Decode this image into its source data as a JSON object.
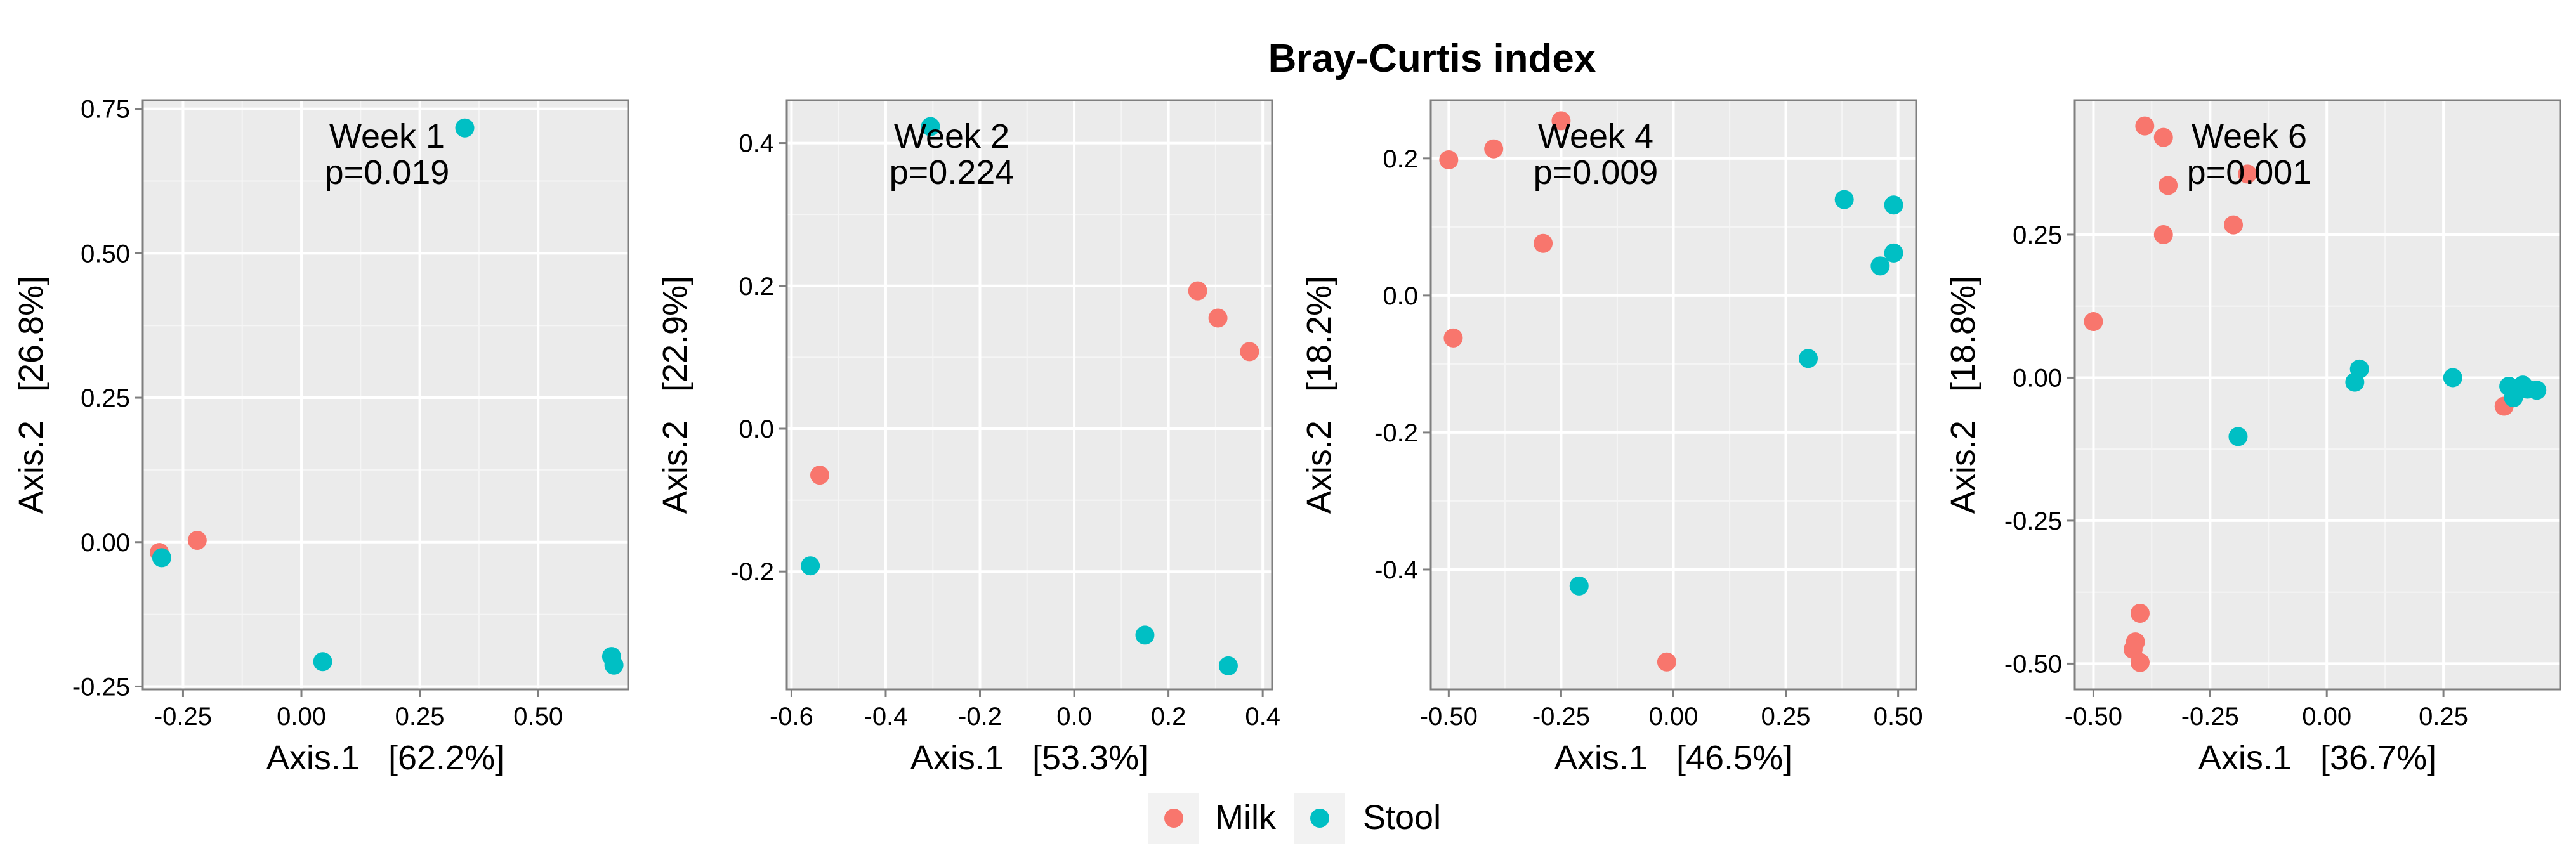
{
  "title": "Bray-Curtis index",
  "legend": {
    "placement": "bottom",
    "items": [
      {
        "label": "Milk",
        "color": "#F8766D"
      },
      {
        "label": "Stool",
        "color": "#00BFC4"
      }
    ]
  },
  "chart_data": [
    {
      "type": "scatter",
      "annotation": [
        "Week 1",
        "p=0.019"
      ],
      "xlabel": "Axis.1   [62.2%]",
      "ylabel": "Axis.2   [26.8%]",
      "xlim": [
        -0.335,
        0.69
      ],
      "ylim": [
        -0.255,
        0.765
      ],
      "xticks": [
        -0.25,
        0.0,
        0.25,
        0.5
      ],
      "xtick_labels": [
        "-0.25",
        "0.00",
        "0.25",
        "0.50"
      ],
      "yticks": [
        -0.25,
        0.0,
        0.25,
        0.5,
        0.75
      ],
      "ytick_labels": [
        "-0.25",
        "0.00",
        "0.25",
        "0.50",
        "0.75"
      ],
      "grid": true,
      "series": [
        {
          "name": "Milk",
          "color": "#F8766D",
          "points": [
            [
              -0.22,
              0.003
            ],
            [
              -0.3,
              -0.018
            ]
          ]
        },
        {
          "name": "Stool",
          "color": "#00BFC4",
          "points": [
            [
              0.345,
              0.717
            ],
            [
              0.045,
              -0.207
            ],
            [
              0.655,
              -0.198
            ],
            [
              0.66,
              -0.213
            ],
            [
              -0.295,
              -0.027
            ]
          ]
        }
      ]
    },
    {
      "type": "scatter",
      "annotation": [
        "Week 2",
        "p=0.224"
      ],
      "xlabel": "Axis.1   [53.3%]",
      "ylabel": "Axis.2   [22.9%]",
      "xlim": [
        -0.61,
        0.42
      ],
      "ylim": [
        -0.365,
        0.46
      ],
      "xticks": [
        -0.6,
        -0.4,
        -0.2,
        0.0,
        0.2,
        0.4
      ],
      "xtick_labels": [
        "-0.6",
        "-0.4",
        "-0.2",
        "0.0",
        "0.2",
        "0.4"
      ],
      "yticks": [
        -0.2,
        0.0,
        0.2,
        0.4
      ],
      "ytick_labels": [
        "-0.2",
        "0.0",
        "0.2",
        "0.4"
      ],
      "grid": true,
      "series": [
        {
          "name": "Milk",
          "color": "#F8766D",
          "points": [
            [
              0.262,
              0.193
            ],
            [
              0.305,
              0.155
            ],
            [
              0.372,
              0.108
            ],
            [
              -0.54,
              -0.065
            ]
          ]
        },
        {
          "name": "Stool",
          "color": "#00BFC4",
          "points": [
            [
              -0.305,
              0.423
            ],
            [
              -0.56,
              -0.192
            ],
            [
              0.15,
              -0.289
            ],
            [
              0.327,
              -0.332
            ]
          ]
        }
      ]
    },
    {
      "type": "scatter",
      "annotation": [
        "Week 4",
        "p=0.009"
      ],
      "xlabel": "Axis.1   [46.5%]",
      "ylabel": "Axis.2   [18.2%]",
      "xlim": [
        -0.54,
        0.54
      ],
      "ylim": [
        -0.575,
        0.285
      ],
      "xticks": [
        -0.5,
        -0.25,
        0.0,
        0.25,
        0.5
      ],
      "xtick_labels": [
        "-0.50",
        "-0.25",
        "0.00",
        "0.25",
        "0.50"
      ],
      "yticks": [
        -0.4,
        -0.2,
        0.0,
        0.2
      ],
      "ytick_labels": [
        "-0.4",
        "-0.2",
        "0.0",
        "0.2"
      ],
      "grid": true,
      "series": [
        {
          "name": "Milk",
          "color": "#F8766D",
          "points": [
            [
              -0.5,
              0.198
            ],
            [
              -0.4,
              0.214
            ],
            [
              -0.25,
              0.255
            ],
            [
              -0.29,
              0.076
            ],
            [
              -0.49,
              -0.062
            ],
            [
              -0.015,
              -0.535
            ]
          ]
        },
        {
          "name": "Stool",
          "color": "#00BFC4",
          "points": [
            [
              0.38,
              0.14
            ],
            [
              0.49,
              0.132
            ],
            [
              0.49,
              0.062
            ],
            [
              0.46,
              0.043
            ],
            [
              0.3,
              -0.092
            ],
            [
              -0.21,
              -0.424
            ]
          ]
        }
      ]
    },
    {
      "type": "scatter",
      "annotation": [
        "Week 6",
        "p=0.001"
      ],
      "xlabel": "Axis.1   [36.7%]",
      "ylabel": "Axis.2   [18.8%]",
      "xlim": [
        -0.54,
        0.5
      ],
      "ylim": [
        -0.545,
        0.485
      ],
      "xticks": [
        -0.5,
        -0.25,
        0.0,
        0.25
      ],
      "xtick_labels": [
        "-0.50",
        "-0.25",
        "0.00",
        "0.25"
      ],
      "yticks": [
        -0.5,
        -0.25,
        0.0,
        0.25
      ],
      "ytick_labels": [
        "-0.50",
        "-0.25",
        "0.00",
        "0.25"
      ],
      "grid": true,
      "series": [
        {
          "name": "Milk",
          "color": "#F8766D",
          "points": [
            [
              -0.39,
              0.44
            ],
            [
              -0.35,
              0.42
            ],
            [
              -0.34,
              0.336
            ],
            [
              -0.35,
              0.25
            ],
            [
              -0.2,
              0.267
            ],
            [
              -0.17,
              0.356
            ],
            [
              -0.5,
              0.098
            ],
            [
              0.38,
              -0.05
            ],
            [
              -0.4,
              -0.412
            ],
            [
              -0.41,
              -0.462
            ],
            [
              -0.415,
              -0.475
            ],
            [
              -0.4,
              -0.498
            ]
          ]
        },
        {
          "name": "Stool",
          "color": "#00BFC4",
          "points": [
            [
              0.06,
              -0.008
            ],
            [
              0.07,
              0.015
            ],
            [
              0.27,
              0.0
            ],
            [
              -0.19,
              -0.103
            ],
            [
              0.39,
              -0.015
            ],
            [
              0.41,
              -0.018
            ],
            [
              0.42,
              -0.013
            ],
            [
              0.4,
              -0.035
            ],
            [
              0.43,
              -0.02
            ],
            [
              0.45,
              -0.022
            ]
          ]
        }
      ]
    }
  ]
}
